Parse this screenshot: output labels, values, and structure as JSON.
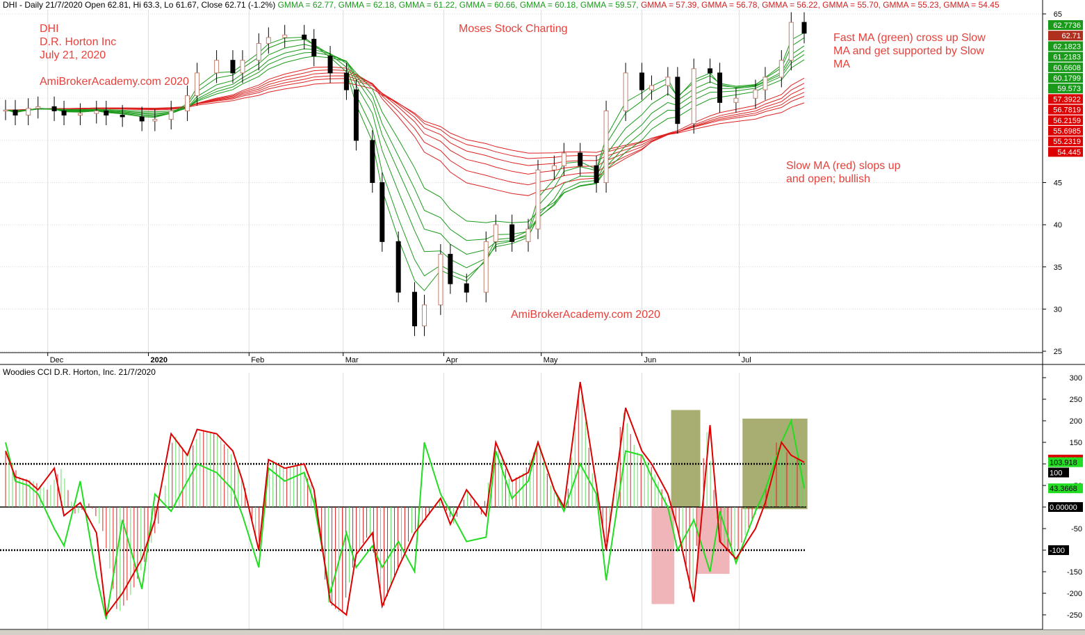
{
  "header": {
    "prefix": "DHI - Daily 21/7/2020 Open 62.81, Hi 63.3, Lo 61.67, Close 62.71 (-1.2%)",
    "gmma_green": [
      "GMMA = 62.77,",
      "GMMA = 62.18,",
      "GMMA = 61.22,",
      "GMMA = 60.66,",
      "GMMA = 60.18,",
      "GMMA = 59.57,"
    ],
    "gmma_red": [
      "GMMA = 57.39,",
      "GMMA = 56.78,",
      "GMMA = 56.22,",
      "GMMA = 55.70,",
      "GMMA = 55.23,",
      "GMMA = 54.45"
    ]
  },
  "annotations": {
    "ticker": "DHI",
    "company": "D.R. Horton Inc",
    "date": "July 21, 2020",
    "site_top": "AmiBrokerAcademy.com  2020",
    "author": "Moses Stock Charting",
    "site_bottom": "AmiBrokerAcademy.com  2020",
    "note_fast": "Fast MA (green) cross up Slow\nMA and get supported by Slow\nMA",
    "note_slow": "Slow MA (red) slops up\nand open; bullish"
  },
  "lower_title": "Woodies CCI  D.R. Horton, Inc. 21/7/2020",
  "colors": {
    "green": "#22dd22",
    "red": "#dd0000",
    "note": "#e8403a",
    "up_candle": "#c08070",
    "down_candle": "#000000"
  },
  "chart_data": [
    {
      "type": "candlestick",
      "title": "DHI - Daily 21/7/2020",
      "x": [
        "2019-11-18",
        "2019-11-21",
        "2019-11-25",
        "2019-11-28",
        "2019-12-03",
        "2019-12-06",
        "2019-12-11",
        "2019-12-16",
        "2019-12-19",
        "2019-12-24",
        "2019-12-30",
        "2020-01-03",
        "2020-01-08",
        "2020-01-13",
        "2020-01-16",
        "2020-01-22",
        "2020-01-27",
        "2020-01-30",
        "2020-02-04",
        "2020-02-07",
        "2020-02-12",
        "2020-02-18",
        "2020-02-21",
        "2020-02-26",
        "2020-03-02",
        "2020-03-05",
        "2020-03-10",
        "2020-03-13",
        "2020-03-18",
        "2020-03-23",
        "2020-03-26",
        "2020-03-31",
        "2020-04-03",
        "2020-04-08",
        "2020-04-14",
        "2020-04-17",
        "2020-04-22",
        "2020-04-27",
        "2020-04-30",
        "2020-05-05",
        "2020-05-08",
        "2020-05-13",
        "2020-05-18",
        "2020-05-21",
        "2020-05-27",
        "2020-06-01",
        "2020-06-04",
        "2020-06-09",
        "2020-06-12",
        "2020-06-17",
        "2020-06-22",
        "2020-06-25",
        "2020-06-30",
        "2020-07-06",
        "2020-07-09",
        "2020-07-14",
        "2020-07-17",
        "2020-07-21"
      ],
      "close": [
        53.6,
        53.0,
        53.8,
        54.0,
        53.5,
        53.0,
        53.2,
        53.5,
        53.0,
        52.8,
        52.3,
        52.5,
        53.5,
        55.3,
        58.0,
        59.5,
        58.0,
        59.5,
        61.5,
        62.2,
        62.5,
        62.0,
        60.0,
        58.0,
        56.0,
        50.0,
        45.0,
        38.0,
        32.0,
        28.0,
        30.5,
        36.5,
        33.0,
        32.0,
        38.0,
        40.0,
        38.0,
        39.5,
        46.5,
        47.0,
        48.5,
        47.0,
        45.0,
        53.5,
        58.0,
        56.0,
        56.5,
        57.5,
        52.0,
        58.5,
        58.0,
        54.5,
        55.0,
        56.0,
        57.5,
        59.5,
        64.0,
        62.71
      ],
      "ylim": [
        25,
        65
      ],
      "yticks": [
        25,
        30,
        35,
        40,
        45,
        50,
        55,
        60,
        65
      ],
      "x_tick_labels": [
        "Dec",
        "2020",
        "Feb",
        "Mar",
        "Apr",
        "May",
        "Jun",
        "Jul"
      ],
      "gmma_fast": [
        62.77,
        62.18,
        61.22,
        60.66,
        60.18,
        59.57
      ],
      "gmma_slow": [
        57.39,
        56.78,
        56.22,
        55.7,
        55.23,
        54.45
      ],
      "right_axis_labels": [
        "62.7736",
        "62.71",
        "62.1823",
        "61.2183",
        "60.6608",
        "60.1799",
        "59.573",
        "57.3922",
        "56.7819",
        "56.2159",
        "55.6985",
        "55.2319",
        "54.445"
      ],
      "grid": true
    },
    {
      "type": "line",
      "title": "Woodies CCI  D.R. Horton, Inc. 21/7/2020",
      "x": [
        "2019-11-18",
        "2019-11-21",
        "2019-11-25",
        "2019-11-28",
        "2019-12-03",
        "2019-12-06",
        "2019-12-11",
        "2019-12-16",
        "2019-12-19",
        "2019-12-24",
        "2019-12-30",
        "2020-01-03",
        "2020-01-08",
        "2020-01-13",
        "2020-01-16",
        "2020-01-22",
        "2020-01-27",
        "2020-01-30",
        "2020-02-04",
        "2020-02-07",
        "2020-02-12",
        "2020-02-18",
        "2020-02-21",
        "2020-02-26",
        "2020-03-02",
        "2020-03-05",
        "2020-03-10",
        "2020-03-13",
        "2020-03-18",
        "2020-03-23",
        "2020-03-26",
        "2020-03-31",
        "2020-04-03",
        "2020-04-08",
        "2020-04-14",
        "2020-04-17",
        "2020-04-22",
        "2020-04-27",
        "2020-04-30",
        "2020-05-05",
        "2020-05-08",
        "2020-05-13",
        "2020-05-18",
        "2020-05-21",
        "2020-05-27",
        "2020-06-01",
        "2020-06-04",
        "2020-06-09",
        "2020-06-12",
        "2020-06-17",
        "2020-06-22",
        "2020-06-25",
        "2020-06-30",
        "2020-07-06",
        "2020-07-09",
        "2020-07-14",
        "2020-07-17",
        "2020-07-21"
      ],
      "series": [
        {
          "values": [
            130,
            70,
            60,
            40,
            90,
            -20,
            10,
            -60,
            -250,
            -200,
            -120,
            -30,
            170,
            120,
            180,
            170,
            130,
            60,
            -100,
            110,
            90,
            100,
            40,
            -220,
            -250,
            -110,
            -60,
            -230,
            -140,
            -60,
            -30,
            20,
            -40,
            40,
            -20,
            150,
            60,
            80,
            150,
            40,
            0,
            290,
            50,
            -100,
            230,
            130,
            100,
            30,
            -50,
            -220,
            190,
            -80,
            -120,
            -50,
            10,
            150,
            120,
            103.918
          ]
        },
        {
          "values": [
            150,
            60,
            50,
            30,
            -50,
            -90,
            60,
            -160,
            -260,
            -30,
            -190,
            30,
            -10,
            60,
            100,
            80,
            40,
            -20,
            -140,
            90,
            60,
            80,
            10,
            -200,
            -60,
            -140,
            -90,
            -140,
            -80,
            -150,
            150,
            30,
            -10,
            -80,
            -70,
            130,
            20,
            60,
            150,
            40,
            -10,
            100,
            30,
            -170,
            130,
            120,
            70,
            0,
            -100,
            -30,
            -150,
            -10,
            -130,
            -10,
            40,
            150,
            200,
            43.3668
          ]
        }
      ],
      "ylim": [
        -270,
        310
      ],
      "yticks": [
        -250,
        -200,
        -150,
        -100,
        -50,
        0,
        50,
        100,
        150,
        200,
        250,
        300
      ],
      "reference_lines": [
        100,
        0,
        -100
      ],
      "right_axis_labels": [
        "103.918",
        "100",
        "43.3668",
        "0.00000",
        "-100"
      ],
      "highlight_boxes": [
        {
          "color": "olive",
          "x_start": "2020-06-10",
          "x_end": "2020-06-19",
          "y_low": 0,
          "y_high": 225
        },
        {
          "color": "olive",
          "x_start": "2020-07-02",
          "x_end": "2020-07-22",
          "y_low": -5,
          "y_high": 205
        },
        {
          "color": "pink",
          "x_start": "2020-06-04",
          "x_end": "2020-06-11",
          "y_low": -225,
          "y_high": 0
        },
        {
          "color": "pink",
          "x_start": "2020-06-18",
          "x_end": "2020-06-28",
          "y_low": -155,
          "y_high": 0
        }
      ],
      "grid": true
    }
  ]
}
